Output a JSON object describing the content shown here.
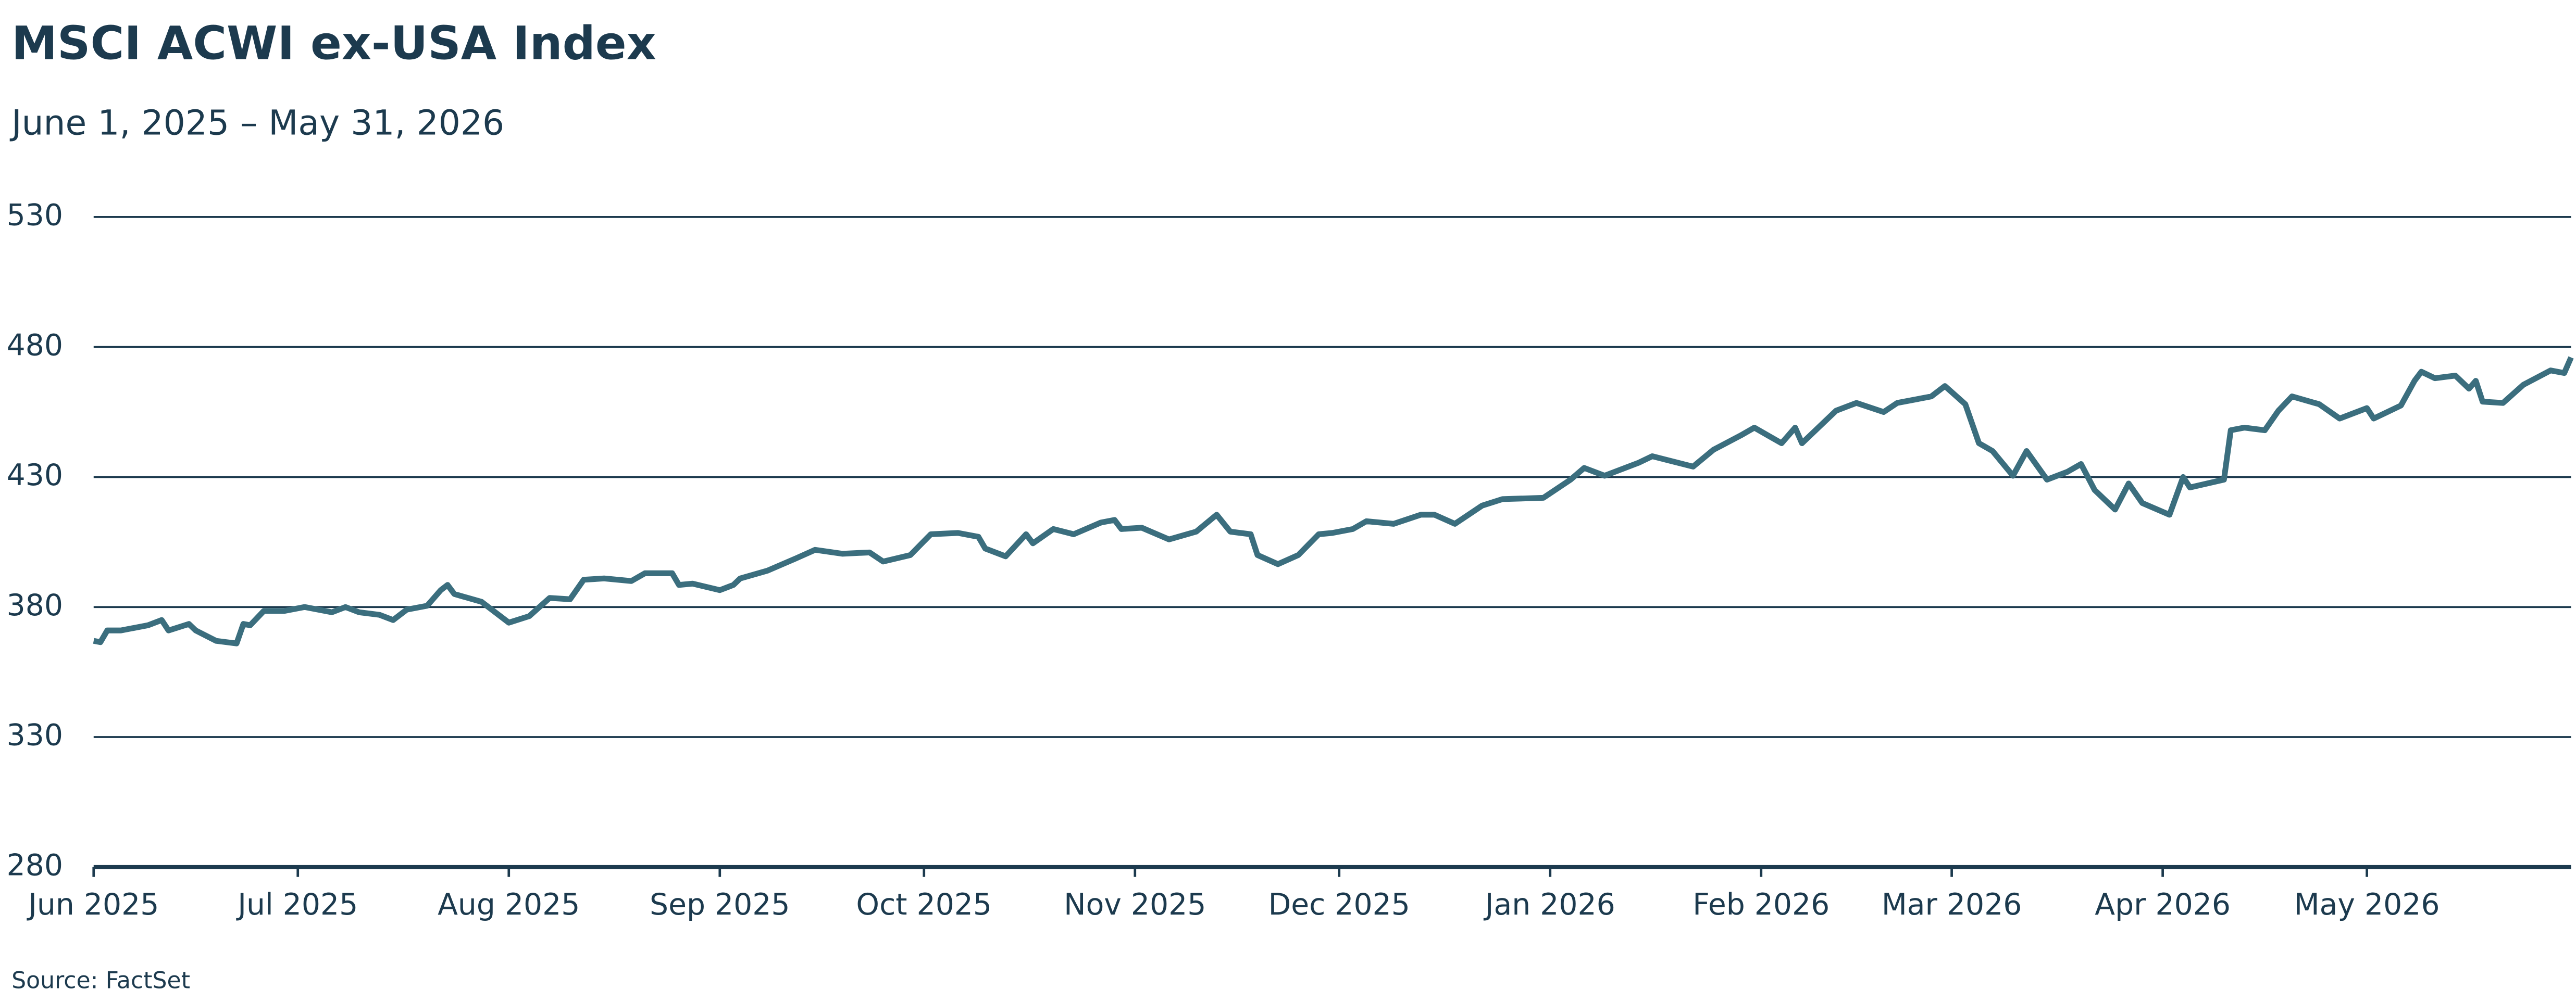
{
  "chart_data": {
    "type": "line",
    "title": "MSCI ACWI ex-USA Index",
    "subtitle": "June 1, 2025 – May 31, 2026",
    "source": "Source: FactSet",
    "xlim": [
      "2025-06-01",
      "2026-05-31"
    ],
    "xticks": [
      {
        "value": "2025-06-01",
        "label": "Jun 2025"
      },
      {
        "value": "2025-07-01",
        "label": "Jul 2025"
      },
      {
        "value": "2025-08-01",
        "label": "Aug 2025"
      },
      {
        "value": "2025-09-01",
        "label": "Sep 2025"
      },
      {
        "value": "2025-10-01",
        "label": "Oct 2025"
      },
      {
        "value": "2025-11-01",
        "label": "Nov 2025"
      },
      {
        "value": "2025-12-01",
        "label": "Dec 2025"
      },
      {
        "value": "2026-01-01",
        "label": "Jan 2026"
      },
      {
        "value": "2026-02-01",
        "label": "Feb 2026"
      },
      {
        "value": "2026-03-01",
        "label": "Mar 2026"
      },
      {
        "value": "2026-04-01",
        "label": "Apr 2026"
      },
      {
        "value": "2026-05-01",
        "label": "May 2026"
      }
    ],
    "ylim": [
      280,
      530
    ],
    "yticks": [
      280,
      330,
      380,
      430,
      480,
      530
    ],
    "grid": true,
    "x": [
      "2025-06-01",
      "2025-06-02",
      "2025-06-03",
      "2025-06-05",
      "2025-06-09",
      "2025-06-11",
      "2025-06-12",
      "2025-06-15",
      "2025-06-16",
      "2025-06-19",
      "2025-06-22",
      "2025-06-23",
      "2025-06-24",
      "2025-06-26",
      "2025-06-29",
      "2025-07-02",
      "2025-07-06",
      "2025-07-08",
      "2025-07-10",
      "2025-07-13",
      "2025-07-15",
      "2025-07-17",
      "2025-07-20",
      "2025-07-22",
      "2025-07-23",
      "2025-07-24",
      "2025-07-28",
      "2025-07-30",
      "2025-08-01",
      "2025-08-04",
      "2025-08-07",
      "2025-08-10",
      "2025-08-12",
      "2025-08-15",
      "2025-08-19",
      "2025-08-21",
      "2025-08-25",
      "2025-08-26",
      "2025-08-28",
      "2025-09-01",
      "2025-09-03",
      "2025-09-04",
      "2025-09-08",
      "2025-09-12",
      "2025-09-15",
      "2025-09-19",
      "2025-09-23",
      "2025-09-25",
      "2025-09-29",
      "2025-10-02",
      "2025-10-06",
      "2025-10-09",
      "2025-10-10",
      "2025-10-13",
      "2025-10-16",
      "2025-10-17",
      "2025-10-20",
      "2025-10-23",
      "2025-10-27",
      "2025-10-29",
      "2025-10-30",
      "2025-11-02",
      "2025-11-06",
      "2025-11-10",
      "2025-11-13",
      "2025-11-15",
      "2025-11-18",
      "2025-11-19",
      "2025-11-22",
      "2025-11-25",
      "2025-11-28",
      "2025-11-30",
      "2025-12-03",
      "2025-12-05",
      "2025-12-09",
      "2025-12-13",
      "2025-12-15",
      "2025-12-18",
      "2025-12-22",
      "2025-12-25",
      "2025-12-31",
      "2026-01-04",
      "2026-01-06",
      "2026-01-09",
      "2026-01-14",
      "2026-01-16",
      "2026-01-22",
      "2026-01-25",
      "2026-01-29",
      "2026-01-31",
      "2026-02-02",
      "2026-02-04",
      "2026-02-06",
      "2026-02-07",
      "2026-02-12",
      "2026-02-15",
      "2026-02-19",
      "2026-02-21",
      "2026-02-26",
      "2026-02-28",
      "2026-03-03",
      "2026-03-05",
      "2026-03-07",
      "2026-03-10",
      "2026-03-12",
      "2026-03-15",
      "2026-03-18",
      "2026-03-20",
      "2026-03-22",
      "2026-03-25",
      "2026-03-27",
      "2026-03-29",
      "2026-04-02",
      "2026-04-04",
      "2026-04-05",
      "2026-04-10",
      "2026-04-11",
      "2026-04-13",
      "2026-04-16",
      "2026-04-18",
      "2026-04-20",
      "2026-04-24",
      "2026-04-27",
      "2026-05-01",
      "2026-05-02",
      "2026-05-06",
      "2026-05-08",
      "2026-05-09",
      "2026-05-11",
      "2026-05-14",
      "2026-05-16",
      "2026-05-17",
      "2026-05-18",
      "2026-05-21",
      "2026-05-24",
      "2026-05-28",
      "2026-05-30",
      "2026-05-31"
    ],
    "series": [
      {
        "name": "MSCI ACWI ex-USA Index",
        "color": "#3b6e7e",
        "values": [
          367,
          366.5,
          371,
          371,
          373,
          375,
          371,
          373.5,
          371,
          367,
          366,
          373.5,
          373,
          378.5,
          378.5,
          380,
          378,
          380,
          378,
          377,
          375,
          379,
          380.5,
          386.5,
          388.5,
          385,
          382,
          378,
          374,
          376.5,
          383.5,
          383,
          390.5,
          391,
          390,
          393,
          393,
          388.5,
          389,
          386.5,
          388.5,
          391,
          394,
          398.5,
          402,
          400.5,
          401,
          397.5,
          400,
          408,
          408.5,
          407,
          402.5,
          399.5,
          408,
          404.5,
          410,
          408,
          412.5,
          413.5,
          410,
          410.5,
          406,
          409,
          415.5,
          409,
          408,
          400,
          396.5,
          400,
          408,
          408.5,
          410,
          413,
          412,
          415.5,
          415.5,
          412,
          419,
          421.5,
          422,
          429,
          433.5,
          430.5,
          435.5,
          438,
          434,
          440.5,
          446,
          449,
          446,
          443,
          449,
          443,
          455.5,
          458.5,
          455,
          458.5,
          461,
          465,
          458,
          443,
          440,
          430.5,
          440,
          429,
          432,
          435,
          425,
          417.5,
          427.5,
          420,
          415.5,
          430,
          426,
          429,
          448,
          449,
          448,
          455.5,
          461,
          458,
          452.5,
          456.5,
          452.5,
          457.5,
          467,
          470.5,
          468,
          469,
          464,
          467,
          459,
          458.5,
          465.5,
          471,
          470,
          476
        ]
      }
    ]
  }
}
